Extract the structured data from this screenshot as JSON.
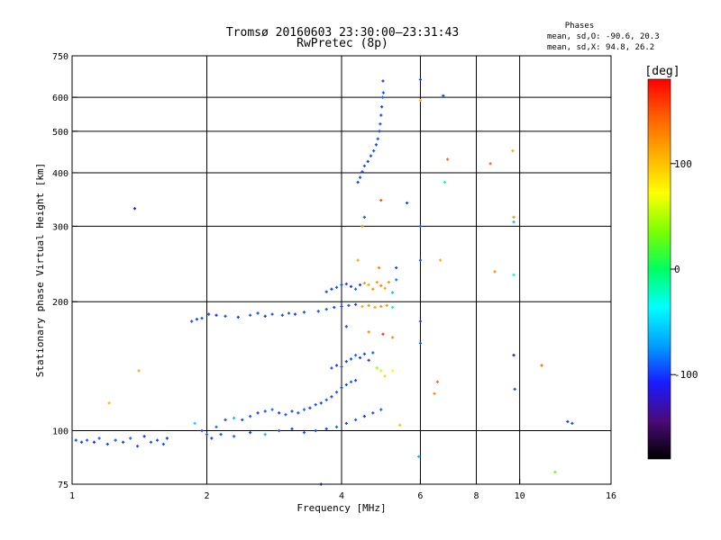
{
  "header": {
    "title": "Tromsø 20160603 23:30:00–23:31:43",
    "subtitle": "RwPretec (8p)"
  },
  "stats": {
    "heading": "Phases",
    "line_o": "mean, sd,O: -90.6, 20.3",
    "line_x": "mean, sd,X:  94.8, 26.2"
  },
  "colorbar": {
    "title": "[deg]",
    "ticks": [
      {
        "value": 100,
        "label": "100"
      },
      {
        "value": 0,
        "label": "0"
      },
      {
        "value": -100,
        "label": "-100"
      }
    ],
    "range": [
      -180,
      180
    ],
    "colors": [
      "#000000",
      "#4b0a78",
      "#1a1aff",
      "#00a0ff",
      "#00ffff",
      "#00ff60",
      "#7cff00",
      "#ffff00",
      "#ffb000",
      "#ff6000",
      "#ff0000"
    ]
  },
  "chart_data": {
    "type": "scatter",
    "xlabel": "Frequency [MHz]",
    "ylabel": "Stationary phase Virtual Height [km]",
    "x_scale": "log",
    "y_scale": "log",
    "xlim": [
      1,
      16
    ],
    "ylim": [
      75,
      750
    ],
    "x_ticks": [
      {
        "value": 1,
        "label": "1"
      },
      {
        "value": 2,
        "label": "2"
      },
      {
        "value": 4,
        "label": "4"
      },
      {
        "value": 6,
        "label": "6"
      },
      {
        "value": 8,
        "label": "8"
      },
      {
        "value": 10,
        "label": "10"
      },
      {
        "value": 16,
        "label": "16"
      }
    ],
    "y_ticks": [
      {
        "value": 75,
        "label": "75"
      },
      {
        "value": 100,
        "label": "100"
      },
      {
        "value": 200,
        "label": "200"
      },
      {
        "value": 300,
        "label": "300"
      },
      {
        "value": 400,
        "label": "400"
      },
      {
        "value": 500,
        "label": "500"
      },
      {
        "value": 600,
        "label": "600"
      },
      {
        "value": 750,
        "label": "750"
      }
    ],
    "grid_x": [
      2,
      4,
      6,
      8,
      10
    ],
    "grid_y": [
      100,
      200,
      300,
      400,
      500,
      600
    ],
    "color_by": "phase [deg]",
    "points": [
      [
        1.02,
        95,
        -95
      ],
      [
        1.05,
        94,
        -100
      ],
      [
        1.08,
        95,
        -92
      ],
      [
        1.12,
        94,
        -105
      ],
      [
        1.15,
        96,
        -90
      ],
      [
        1.2,
        93,
        -98
      ],
      [
        1.25,
        95,
        -94
      ],
      [
        1.3,
        94,
        -100
      ],
      [
        1.35,
        96,
        -88
      ],
      [
        1.4,
        92,
        -96
      ],
      [
        1.45,
        97,
        -102
      ],
      [
        1.5,
        94,
        -91
      ],
      [
        1.55,
        95,
        -99
      ],
      [
        1.6,
        93,
        -95
      ],
      [
        1.63,
        96,
        -100
      ],
      [
        1.38,
        330,
        -110
      ],
      [
        1.41,
        138,
        110
      ],
      [
        1.21,
        116,
        105
      ],
      [
        1.85,
        180,
        -95
      ],
      [
        1.9,
        182,
        -100
      ],
      [
        1.95,
        183,
        -92
      ],
      [
        2.02,
        187,
        -98
      ],
      [
        2.1,
        186,
        -105
      ],
      [
        2.2,
        185,
        -95
      ],
      [
        2.35,
        184,
        -100
      ],
      [
        2.5,
        186,
        -90
      ],
      [
        2.6,
        188,
        -96
      ],
      [
        2.7,
        185,
        -100
      ],
      [
        2.8,
        187,
        -94
      ],
      [
        2.95,
        186,
        -98
      ],
      [
        3.05,
        188,
        -92
      ],
      [
        3.15,
        187,
        -100
      ],
      [
        3.3,
        189,
        -96
      ],
      [
        1.88,
        104,
        -50
      ],
      [
        1.95,
        100,
        -95
      ],
      [
        2.0,
        98,
        -90
      ],
      [
        2.05,
        96,
        -100
      ],
      [
        2.1,
        102,
        -85
      ],
      [
        2.2,
        106,
        -95
      ],
      [
        2.3,
        107,
        -60
      ],
      [
        2.4,
        106,
        -98
      ],
      [
        2.5,
        108,
        -90
      ],
      [
        2.6,
        110,
        -100
      ],
      [
        2.7,
        111,
        -95
      ],
      [
        2.8,
        112,
        -85
      ],
      [
        2.9,
        110,
        -100
      ],
      [
        3.0,
        109,
        -92
      ],
      [
        3.1,
        111,
        -98
      ],
      [
        3.2,
        110,
        -95
      ],
      [
        3.3,
        112,
        -88
      ],
      [
        3.4,
        113,
        -100
      ],
      [
        3.5,
        115,
        -94
      ],
      [
        3.6,
        116,
        -98
      ],
      [
        3.7,
        118,
        -90
      ],
      [
        3.8,
        120,
        -100
      ],
      [
        3.9,
        123,
        -92
      ],
      [
        4.0,
        126,
        -98
      ],
      [
        4.1,
        128,
        -95
      ],
      [
        4.2,
        130,
        -88
      ],
      [
        4.3,
        131,
        -100
      ],
      [
        2.15,
        98,
        -95
      ],
      [
        2.3,
        97,
        -90
      ],
      [
        2.5,
        99,
        -100
      ],
      [
        2.7,
        98,
        -60
      ],
      [
        2.9,
        100,
        -95
      ],
      [
        3.1,
        101,
        -98
      ],
      [
        3.3,
        99,
        -92
      ],
      [
        3.5,
        100,
        -100
      ],
      [
        3.7,
        101,
        -95
      ],
      [
        3.9,
        102,
        -88
      ],
      [
        4.1,
        104,
        -98
      ],
      [
        4.3,
        106,
        -92
      ],
      [
        4.5,
        108,
        -100
      ],
      [
        4.7,
        110,
        -95
      ],
      [
        4.9,
        112,
        -90
      ],
      [
        3.8,
        140,
        -95
      ],
      [
        3.9,
        142,
        -100
      ],
      [
        4.0,
        141,
        -92
      ],
      [
        4.1,
        145,
        -98
      ],
      [
        4.2,
        147,
        -95
      ],
      [
        4.3,
        150,
        -88
      ],
      [
        4.4,
        148,
        -100
      ],
      [
        4.5,
        151,
        -94
      ],
      [
        4.6,
        146,
        -98
      ],
      [
        4.7,
        152,
        -90
      ],
      [
        4.8,
        140,
        40
      ],
      [
        4.9,
        138,
        60
      ],
      [
        5.0,
        134,
        90
      ],
      [
        5.2,
        138,
        70
      ],
      [
        3.55,
        190,
        -95
      ],
      [
        3.7,
        192,
        -90
      ],
      [
        3.85,
        194,
        -98
      ],
      [
        4.0,
        195,
        -100
      ],
      [
        4.15,
        196,
        -92
      ],
      [
        4.3,
        197,
        -95
      ],
      [
        4.45,
        195,
        110
      ],
      [
        4.6,
        196,
        120
      ],
      [
        4.75,
        194,
        115
      ],
      [
        4.9,
        195,
        125
      ],
      [
        5.05,
        196,
        118
      ],
      [
        5.2,
        194,
        -20
      ],
      [
        3.7,
        211,
        -95
      ],
      [
        3.8,
        214,
        -100
      ],
      [
        3.9,
        216,
        -92
      ],
      [
        4.0,
        219,
        -98
      ],
      [
        4.1,
        220,
        -95
      ],
      [
        4.2,
        217,
        -100
      ],
      [
        4.3,
        214,
        -90
      ],
      [
        4.4,
        219,
        -96
      ],
      [
        4.5,
        221,
        120
      ],
      [
        4.6,
        219,
        110
      ],
      [
        4.7,
        214,
        125
      ],
      [
        4.8,
        222,
        118
      ],
      [
        4.9,
        218,
        130
      ],
      [
        5.0,
        215,
        112
      ],
      [
        5.1,
        222,
        120
      ],
      [
        5.2,
        210,
        -60
      ],
      [
        5.3,
        225,
        -80
      ],
      [
        4.35,
        250,
        110
      ],
      [
        4.45,
        300,
        125
      ],
      [
        4.5,
        315,
        -90
      ],
      [
        4.9,
        345,
        150
      ],
      [
        4.85,
        240,
        130
      ],
      [
        5.3,
        240,
        -95
      ],
      [
        5.2,
        165,
        125
      ],
      [
        4.6,
        170,
        125
      ],
      [
        4.95,
        168,
        160
      ],
      [
        4.1,
        175,
        -95
      ],
      [
        4.35,
        380,
        -100
      ],
      [
        4.4,
        390,
        -95
      ],
      [
        4.45,
        402,
        -98
      ],
      [
        4.5,
        415,
        -92
      ],
      [
        4.58,
        425,
        -100
      ],
      [
        4.65,
        438,
        -96
      ],
      [
        4.72,
        450,
        -90
      ],
      [
        4.78,
        465,
        -98
      ],
      [
        4.82,
        480,
        -95
      ],
      [
        4.86,
        500,
        -100
      ],
      [
        4.88,
        520,
        -92
      ],
      [
        4.9,
        545,
        -96
      ],
      [
        4.92,
        570,
        -98
      ],
      [
        4.94,
        600,
        -90
      ],
      [
        4.96,
        615,
        -95
      ],
      [
        4.95,
        655,
        -100
      ],
      [
        6.0,
        660,
        -98
      ],
      [
        6.0,
        590,
        110
      ],
      [
        6.0,
        250,
        -95
      ],
      [
        6.0,
        300,
        -92
      ],
      [
        6.0,
        180,
        -100
      ],
      [
        6.0,
        160,
        -95
      ],
      [
        5.95,
        87,
        -60
      ],
      [
        5.6,
        340,
        -100
      ],
      [
        5.4,
        103,
        100
      ],
      [
        6.45,
        122,
        125
      ],
      [
        6.55,
        130,
        140
      ],
      [
        6.8,
        380,
        -20
      ],
      [
        6.9,
        430,
        140
      ],
      [
        6.75,
        605,
        -100
      ],
      [
        6.65,
        250,
        110
      ],
      [
        8.6,
        420,
        140
      ],
      [
        8.8,
        235,
        125
      ],
      [
        9.65,
        450,
        110
      ],
      [
        9.7,
        315,
        120
      ],
      [
        9.7,
        307,
        -60
      ],
      [
        9.7,
        231,
        -25
      ],
      [
        9.7,
        150,
        -110
      ],
      [
        9.75,
        125,
        -95
      ],
      [
        11.2,
        142,
        140
      ],
      [
        12.8,
        105,
        -98
      ],
      [
        13.1,
        104,
        -95
      ],
      [
        12.0,
        80,
        30
      ],
      [
        3.6,
        75,
        -100
      ]
    ]
  }
}
